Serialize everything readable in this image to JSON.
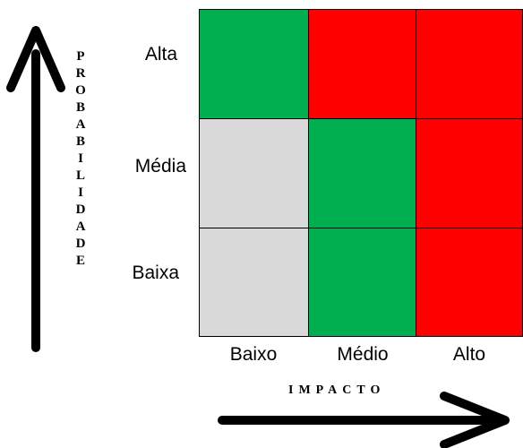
{
  "title_y": "PROBABILIDADE",
  "title_x": "IMPACTO",
  "rows": [
    "Alta",
    "Média",
    "Baixa"
  ],
  "columns": [
    "Baixo",
    "Médio",
    "Alto"
  ],
  "colors": {
    "green": "#00b050",
    "red": "#ff0000",
    "gray": "#d9d9d9"
  },
  "grid": [
    [
      "green",
      "red",
      "red"
    ],
    [
      "gray",
      "green",
      "red"
    ],
    [
      "gray",
      "green",
      "red"
    ]
  ]
}
